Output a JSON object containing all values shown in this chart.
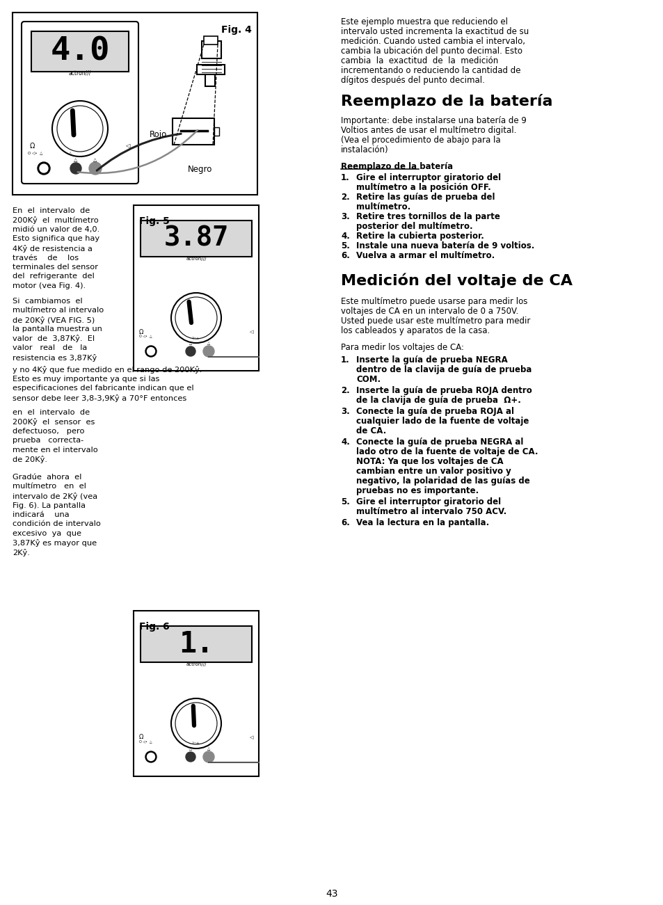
{
  "page_number": "43",
  "bg_color": "#ffffff",
  "text_color": "#000000",
  "fig4_label": "Fig. 4",
  "fig5_label": "Fig. 5",
  "fig6_label": "Fig. 6",
  "fig4_display": "4.0",
  "fig5_display": "3.87",
  "fig6_display": "1.",
  "rojo_label": "Rojo",
  "negro_label": "Negro",
  "section1_title": "Reemplazo de la batería",
  "section1_para": [
    "Importante: debe instalarse una batería de 9",
    "Voltios antes de usar el multímetro digital.",
    "(Vea el procedimiento de abajo para la",
    "instalación)"
  ],
  "subsection1_title": "Reemplazo de la batería",
  "section2_title": "Medición del voltaje de CA",
  "section2_para": [
    "Este multímetro puede usarse para medir los",
    "voltajes de CA en un intervalo de 0 a 750V.",
    "Usted puede usar este multímetro para medir",
    "los cableados y aparatos de la casa."
  ],
  "section2_para2": "Para medir los voltajes de CA:",
  "right_col_para1": [
    "Este ejemplo muestra que reduciendo el",
    "intervalo usted incrementa la exactitud de su",
    "medición. Cuando usted cambia el intervalo,",
    "cambia la ubicación del punto decimal. Esto",
    "cambia  la  exactitud  de  la  medición",
    "incrementando o reduciendo la cantidad de",
    "dígitos después del punto decimal."
  ],
  "left_para1": [
    "En  el  intervalo  de",
    "200Kŷ  el  multímetro",
    "midió un valor de 4,0.",
    "Esto significa que hay",
    "4Kŷ de resistencia a",
    "través    de    los",
    "terminales del sensor",
    "del  refrigerante  del",
    "motor (vea Fig. 4)."
  ],
  "left_para2": [
    "Si  cambiamos  el",
    "multímetro al intervalo",
    "de 20Kŷ (VEA FIG. 5)",
    "la pantalla muestra un",
    "valor  de  3,87Kŷ.  El",
    "valor   real   de   la",
    "resistencia es 3,87Kŷ"
  ],
  "left_para3": [
    "y no 4Kŷ que fue medido en el rango de 200Kŷ.",
    "Esto es muy importante ya que si las",
    "especificaciones del fabricante indican que el",
    "sensor debe leer 3,8-3,9Kŷ a 70°F entonces"
  ],
  "left_para4": [
    "en  el  intervalo  de",
    "200Kŷ  el  sensor  es",
    "defectuoso,   pero",
    "prueba   correcta-",
    "mente en el intervalo",
    "de 20Kŷ."
  ],
  "left_para5": [
    "Gradúe  ahora  el",
    "multímetro   en  el",
    "intervalo de 2Kŷ (vea",
    "Fig. 6). La pantalla",
    "indicará    una",
    "condición de intervalo",
    "excesivo  ya  que",
    "3,87Kŷ es mayor que",
    "2Kŷ."
  ],
  "step_data1": [
    [
      "1.",
      [
        "Gire el interruptor giratorio del",
        "multímetro a la posición OFF."
      ]
    ],
    [
      "2.",
      [
        "Retire las guías de prueba del",
        "multímetro."
      ]
    ],
    [
      "3.",
      [
        "Retire tres tornillos de la parte",
        "posterior del multímetro."
      ]
    ],
    [
      "4.",
      [
        "Retire la cubierta posterior."
      ]
    ],
    [
      "5.",
      [
        "Instale una nueva batería de 9 voltios."
      ]
    ],
    [
      "6.",
      [
        "Vuelva a armar el multímetro."
      ]
    ]
  ],
  "step_data2": [
    [
      "1.",
      [
        "Inserte la guía de prueba NEGRA",
        "dentro de la clavija de guía de prueba",
        "COM."
      ]
    ],
    [
      "2.",
      [
        "Inserte la guía de prueba ROJA dentro",
        "de la clavija de guía de prueba  Ω+."
      ]
    ],
    [
      "3.",
      [
        "Conecte la guía de prueba ROJA al",
        "cualquier lado de la fuente de voltaje",
        "de CA."
      ]
    ],
    [
      "4.",
      [
        "Conecte la guía de prueba NEGRA al",
        "lado otro de la fuente de voltaje de CA.",
        "NOTA: Ya que los voltajes de CA",
        "cambian entre un valor positivo y",
        "negativo, la polaridad de las guías de",
        "pruebas no es importante."
      ]
    ],
    [
      "5.",
      [
        "Gire el interruptor giratorio del",
        "multímetro al intervalo 750 ACV."
      ]
    ],
    [
      "6.",
      [
        "Vea la lectura en la pantalla."
      ]
    ]
  ]
}
